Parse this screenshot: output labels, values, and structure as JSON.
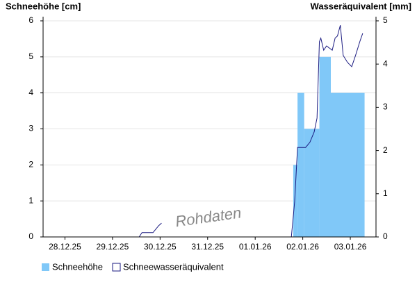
{
  "chart_data": {
    "type": "snow",
    "y_label": "Schneehöhe [cm]",
    "y2_label": "Wasseräquivalent [mm]",
    "watermark": "Rohdaten",
    "xlim": [
      0.04,
      7.04
    ],
    "xticks": [
      {
        "value": 0.5,
        "label": "28.12.25"
      },
      {
        "value": 1.5,
        "label": "29.12.25"
      },
      {
        "value": 2.5,
        "label": "30.12.25"
      },
      {
        "value": 3.5,
        "label": "31.12.25"
      },
      {
        "value": 4.5,
        "label": "01.01.26"
      },
      {
        "value": 5.5,
        "label": "02.01.26"
      },
      {
        "value": 6.5,
        "label": "03.01.26"
      }
    ],
    "ylim": [
      0,
      6
    ],
    "yticks": [
      0,
      1,
      2,
      3,
      4,
      5,
      6
    ],
    "y2lim": [
      0,
      5
    ],
    "y2ticks": [
      0,
      1,
      2,
      3,
      4,
      5
    ],
    "grid": true,
    "series": [
      {
        "name": "Schneehöhe",
        "color": "#80c8f8",
        "kind": "bar",
        "bins": [
          5.3,
          5.39,
          5.53,
          5.85,
          6.09,
          6.8
        ],
        "values": [
          2,
          4,
          3,
          5,
          4
        ]
      },
      {
        "name": "Schneewasseräquivalent",
        "color": "#1a1a80",
        "kind": "line",
        "axis": "y2",
        "x": [
          2.06,
          2.12,
          2.35,
          2.41,
          2.47,
          2.53,
          4.0,
          5.26,
          5.33,
          5.39,
          5.56,
          5.65,
          5.74,
          5.8,
          5.85,
          5.88,
          5.94,
          6.0,
          6.12,
          6.18,
          6.23,
          6.29,
          6.35,
          6.44,
          6.53,
          6.61,
          6.7,
          6.76
        ],
        "values": [
          0,
          0.1,
          0.1,
          0.18,
          0.26,
          0.32,
          null,
          0,
          0.82,
          2.07,
          2.07,
          2.19,
          2.43,
          2.75,
          4.52,
          4.6,
          4.32,
          4.42,
          4.32,
          4.6,
          4.65,
          4.9,
          4.2,
          4.04,
          3.94,
          4.2,
          4.52,
          4.71
        ]
      }
    ]
  }
}
